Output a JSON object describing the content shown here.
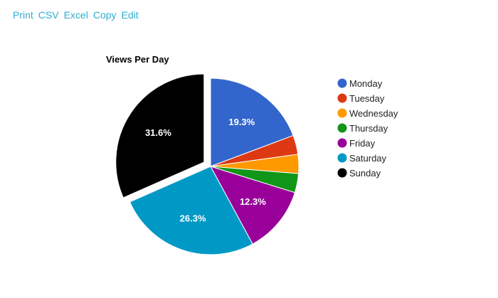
{
  "toolbar": {
    "print_label": "Print",
    "csv_label": "CSV",
    "excel_label": "Excel",
    "copy_label": "Copy",
    "edit_label": "Edit",
    "link_color": "#2bb0d1"
  },
  "chart_data": {
    "type": "pie",
    "title": "Views Per Day",
    "legend_position": "right",
    "start_angle_deg": 0,
    "exploded_slice": "Sunday",
    "slices": [
      {
        "label": "Monday",
        "value": 19.3,
        "color": "#3366cc",
        "show_label": true,
        "label_text": "19.3%"
      },
      {
        "label": "Tuesday",
        "value": 3.5,
        "color": "#dc3912",
        "show_label": false,
        "label_text": ""
      },
      {
        "label": "Wednesday",
        "value": 3.5,
        "color": "#ff9900",
        "show_label": false,
        "label_text": ""
      },
      {
        "label": "Thursday",
        "value": 3.5,
        "color": "#109618",
        "show_label": false,
        "label_text": ""
      },
      {
        "label": "Friday",
        "value": 12.3,
        "color": "#990099",
        "show_label": true,
        "label_text": "12.3%"
      },
      {
        "label": "Saturday",
        "value": 26.3,
        "color": "#0099c6",
        "show_label": true,
        "label_text": "26.3%"
      },
      {
        "label": "Sunday",
        "value": 31.6,
        "color": "#000000",
        "show_label": true,
        "label_text": "31.6%"
      }
    ]
  }
}
